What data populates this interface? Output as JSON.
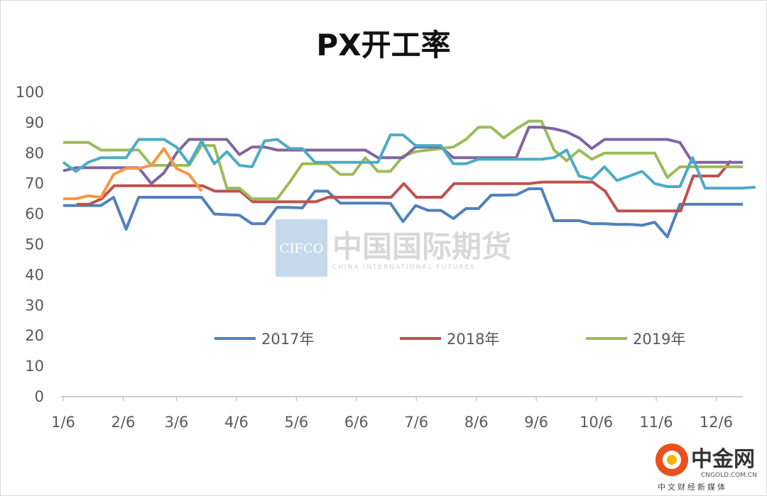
{
  "chart_data": {
    "type": "line",
    "title": "PX开工率",
    "ylim": [
      0,
      100
    ],
    "yticks": [
      "0",
      "10",
      "20",
      "30",
      "40",
      "50",
      "60",
      "70",
      "80",
      "90",
      "100"
    ],
    "xlim": [
      1,
      52
    ],
    "xticks": [
      {
        "label": "1/6",
        "week": 1
      },
      {
        "label": "2/6",
        "week": 5.5
      },
      {
        "label": "3/6",
        "week": 9.5
      },
      {
        "label": "4/6",
        "week": 14
      },
      {
        "label": "5/6",
        "week": 18.5
      },
      {
        "label": "6/6",
        "week": 23
      },
      {
        "label": "7/6",
        "week": 27.5
      },
      {
        "label": "8/6",
        "week": 32
      },
      {
        "label": "9/6",
        "week": 36.5
      },
      {
        "label": "10/6",
        "week": 41
      },
      {
        "label": "11/6",
        "week": 45.5
      },
      {
        "label": "12/6",
        "week": 50
      }
    ],
    "legend_position": "inside-center",
    "grid": false,
    "series": [
      {
        "name": "2017年",
        "color": "#4f81bd",
        "start_week": 1,
        "in_legend": true,
        "values": [
          62.8,
          62.8,
          62.8,
          62.8,
          65.5,
          55,
          65.5,
          65.5,
          65.5,
          65.5,
          65.5,
          65.5,
          60,
          59.8,
          59.6,
          56.8,
          56.8,
          62.2,
          62.2,
          62,
          67.5,
          67.5,
          63.6,
          63.6,
          63.6,
          63.6,
          63.5,
          57.5,
          62.8,
          61.2,
          61.2,
          58.5,
          61.8,
          61.8,
          66.2,
          66.2,
          66.3,
          68.3,
          68.3,
          57.8,
          57.8,
          57.8,
          56.8,
          56.8,
          56.6,
          56.6,
          56.3,
          57.3,
          52.5,
          63.2,
          63.2,
          63.2,
          63.2,
          63.2,
          63.2
        ]
      },
      {
        "name": "2018年",
        "color": "#c0504d",
        "start_week": 2,
        "in_legend": true,
        "values": [
          63.2,
          63.2,
          65,
          69.3,
          69.3,
          69.3,
          69.3,
          69.3,
          69.3,
          69.3,
          69.3,
          67.5,
          67.5,
          67.5,
          64,
          64,
          64,
          64,
          64,
          64,
          65.5,
          65.5,
          65.5,
          65.5,
          65.5,
          65.5,
          70,
          65.5,
          65.5,
          65.5,
          70,
          70,
          70,
          70,
          70,
          70,
          70,
          70.5,
          70.5,
          70.5,
          70.5,
          70.5,
          67.5,
          61,
          61,
          61,
          61,
          61,
          61,
          72.5,
          72.5,
          72.5,
          77.5
        ]
      },
      {
        "name": "2019年",
        "color": "#9bbb59",
        "start_week": 1,
        "in_legend": true,
        "values": [
          83.5,
          83.5,
          83.5,
          81,
          81,
          81,
          81,
          76,
          76,
          76,
          76,
          82.5,
          82.5,
          68.5,
          68.5,
          65,
          65,
          65,
          70.5,
          76.5,
          76.5,
          76.5,
          73,
          73,
          78.5,
          74,
          74,
          79,
          80.5,
          81,
          81.5,
          82,
          84.5,
          88.5,
          88.5,
          85,
          88,
          90.5,
          90.5,
          81,
          77.5,
          81,
          78,
          80,
          80,
          80,
          80,
          80,
          72,
          75.5,
          75.5,
          75.5,
          75.5,
          75.5,
          75.5
        ]
      },
      {
        "name": "",
        "color": "#8064a2",
        "start_week": 1,
        "in_legend": false,
        "values": [
          74.2,
          75.2,
          75.2,
          75.2,
          75.2,
          75.2,
          75.2,
          70,
          73.5,
          80,
          84.5,
          84.5,
          84.5,
          84.5,
          79.5,
          82,
          82,
          81,
          81,
          81,
          81,
          81,
          81,
          81,
          81,
          78.5,
          78.5,
          78.5,
          82,
          82,
          82,
          78.5,
          78.5,
          78.5,
          78.5,
          78.5,
          78.5,
          88.5,
          88.5,
          88,
          87,
          85,
          81.5,
          84.5,
          84.5,
          84.5,
          84.5,
          84.5,
          84.5,
          83.5,
          77,
          77,
          77,
          77,
          77
        ]
      },
      {
        "name": "",
        "color": "#4bacc6",
        "start_week": 1,
        "in_legend": false,
        "values": [
          77,
          74,
          77,
          78.5,
          78.5,
          78.5,
          84.5,
          84.5,
          84.5,
          82,
          76.5,
          84,
          76.5,
          80.5,
          76,
          75.5,
          84,
          84.5,
          81.5,
          81.5,
          77,
          77,
          77,
          77,
          77,
          77,
          86,
          86,
          82.5,
          82.5,
          82.5,
          76.5,
          76.5,
          78,
          78,
          78,
          78,
          78,
          78,
          78.5,
          81,
          72.5,
          71.5,
          75.5,
          71,
          72.5,
          74,
          70,
          69,
          69,
          78.5,
          68.5,
          68.5,
          68.5,
          68.5,
          68.8
        ]
      },
      {
        "name": "",
        "color": "#f79646",
        "start_week": 1,
        "in_legend": false,
        "values": [
          65,
          65,
          66,
          65.5,
          73,
          75,
          75,
          76,
          81.5,
          75,
          73,
          67.5
        ]
      }
    ]
  },
  "watermark": {
    "cifco": "CIFCO",
    "name_cn": "中国国际期货",
    "name_en": "CHINA  INTERNATIONAL  FUTURES"
  },
  "logo": {
    "name_cn": "中金网",
    "url": "CNGOLD.COM.CN",
    "subtitle": "中文财经新媒体",
    "color": "#e8511c"
  }
}
